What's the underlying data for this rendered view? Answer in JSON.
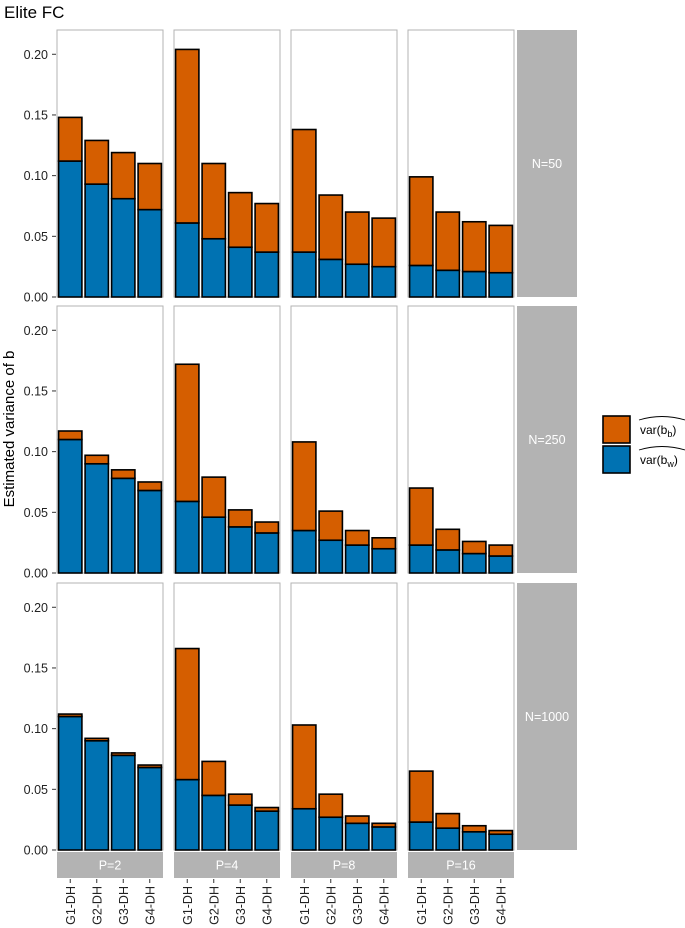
{
  "chart_data": {
    "type": "bar",
    "stacked": true,
    "title": "Elite FC",
    "ylabel": "Estimated variance of b",
    "xlabel": "",
    "ylim": [
      0,
      0.22
    ],
    "yticks": [
      "0.00",
      "0.05",
      "0.10",
      "0.15",
      "0.20"
    ],
    "ytick_values": [
      0,
      0.05,
      0.1,
      0.15,
      0.2
    ],
    "categories": [
      "G1-DH",
      "G2-DH",
      "G3-DH",
      "G4-DH"
    ],
    "rows": [
      "N=50",
      "N=250",
      "N=1000"
    ],
    "cols": [
      "P=2",
      "P=4",
      "P=8",
      "P=16"
    ],
    "legend": [
      {
        "label": "var(b",
        "sub": "b",
        "close": ")",
        "color": "#d55e00"
      },
      {
        "label": "var(b",
        "sub": "w",
        "close": ")",
        "color": "#0072b2"
      }
    ],
    "legend_position": "right",
    "panels": [
      [
        {
          "within": [
            0.112,
            0.093,
            0.081,
            0.072
          ],
          "between": [
            0.036,
            0.036,
            0.038,
            0.038
          ]
        },
        {
          "within": [
            0.061,
            0.048,
            0.041,
            0.037
          ],
          "between": [
            0.143,
            0.062,
            0.045,
            0.04
          ]
        },
        {
          "within": [
            0.037,
            0.031,
            0.027,
            0.025
          ],
          "between": [
            0.101,
            0.053,
            0.043,
            0.04
          ]
        },
        {
          "within": [
            0.026,
            0.022,
            0.021,
            0.02
          ],
          "between": [
            0.073,
            0.048,
            0.041,
            0.039
          ]
        }
      ],
      [
        {
          "within": [
            0.11,
            0.09,
            0.078,
            0.068
          ],
          "between": [
            0.007,
            0.007,
            0.007,
            0.007
          ]
        },
        {
          "within": [
            0.059,
            0.046,
            0.038,
            0.033
          ],
          "between": [
            0.113,
            0.033,
            0.014,
            0.009
          ]
        },
        {
          "within": [
            0.035,
            0.027,
            0.023,
            0.02
          ],
          "between": [
            0.073,
            0.024,
            0.012,
            0.009
          ]
        },
        {
          "within": [
            0.023,
            0.019,
            0.016,
            0.014
          ],
          "between": [
            0.047,
            0.017,
            0.01,
            0.009
          ]
        }
      ],
      [
        {
          "within": [
            0.11,
            0.09,
            0.078,
            0.068
          ],
          "between": [
            0.002,
            0.002,
            0.002,
            0.002
          ]
        },
        {
          "within": [
            0.058,
            0.045,
            0.037,
            0.032
          ],
          "between": [
            0.108,
            0.028,
            0.009,
            0.003
          ]
        },
        {
          "within": [
            0.034,
            0.027,
            0.022,
            0.019
          ],
          "between": [
            0.069,
            0.019,
            0.006,
            0.003
          ]
        },
        {
          "within": [
            0.023,
            0.018,
            0.015,
            0.013
          ],
          "between": [
            0.042,
            0.012,
            0.005,
            0.003
          ]
        }
      ]
    ]
  }
}
